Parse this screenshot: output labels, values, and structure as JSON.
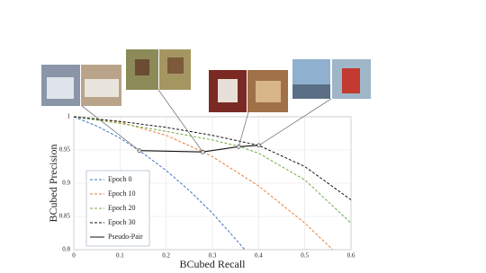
{
  "chart_data": {
    "type": "line",
    "xlabel": "BCubed Recall",
    "ylabel": "BCubed Precision",
    "xlim": [
      0,
      0.6
    ],
    "ylim": [
      0.8,
      1
    ],
    "xticks": [
      0,
      0.1,
      0.2,
      0.3,
      0.4,
      0.5,
      0.6
    ],
    "yticks": [
      0.8,
      0.85,
      0.9,
      0.95,
      1
    ],
    "grid": true,
    "legend": "lower left",
    "series": [
      {
        "name": "Epoch 0",
        "color": "#4472c4",
        "dashed": true,
        "x": [
          0,
          0.05,
          0.1,
          0.15,
          0.2,
          0.25,
          0.3,
          0.35,
          0.37
        ],
        "values": [
          1,
          0.986,
          0.968,
          0.945,
          0.919,
          0.889,
          0.855,
          0.816,
          0.8
        ]
      },
      {
        "name": "Epoch 10",
        "color": "#ed7d31",
        "dashed": true,
        "x": [
          0,
          0.1,
          0.2,
          0.28,
          0.3,
          0.4,
          0.5,
          0.56
        ],
        "values": [
          1,
          0.992,
          0.972,
          0.947,
          0.94,
          0.896,
          0.84,
          0.8
        ]
      },
      {
        "name": "Epoch 20",
        "color": "#70ad47",
        "dashed": true,
        "x": [
          0,
          0.1,
          0.2,
          0.3,
          0.36,
          0.4,
          0.5,
          0.6
        ],
        "values": [
          1,
          0.99,
          0.978,
          0.965,
          0.955,
          0.945,
          0.905,
          0.84
        ]
      },
      {
        "name": "Epoch 30",
        "color": "#111111",
        "dashed": true,
        "x": [
          0,
          0.1,
          0.2,
          0.3,
          0.4,
          0.5,
          0.6
        ],
        "values": [
          1,
          0.993,
          0.984,
          0.972,
          0.957,
          0.925,
          0.875
        ]
      },
      {
        "name": "Pseudo-Pair",
        "color": "#111111",
        "dashed": false,
        "markers": true,
        "x": [
          0.142,
          0.279,
          0.357,
          0.401
        ],
        "values": [
          0.949,
          0.947,
          0.955,
          0.957
        ]
      }
    ]
  }
}
